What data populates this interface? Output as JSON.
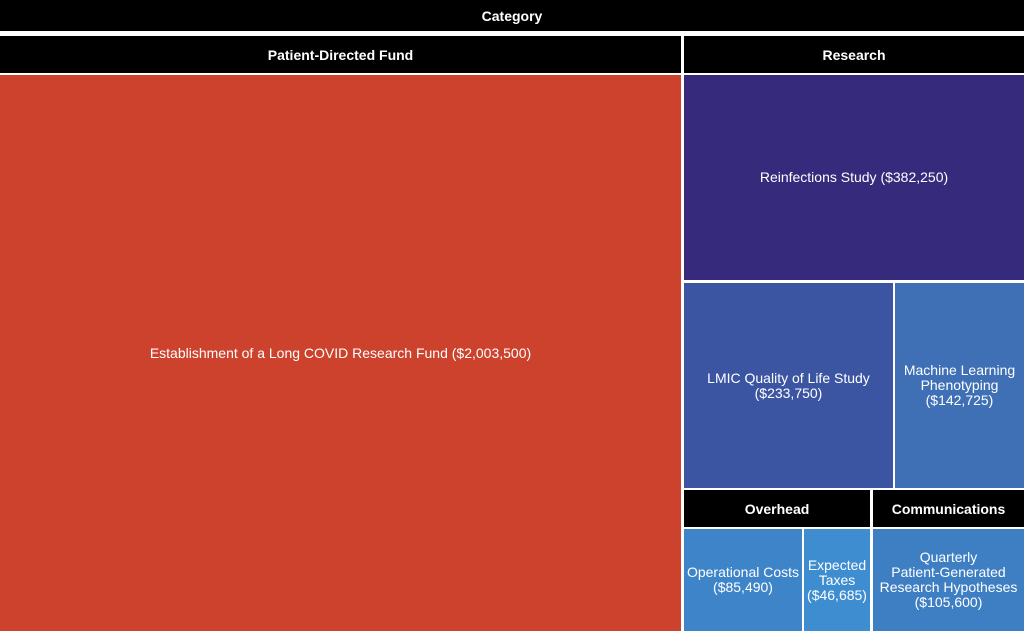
{
  "chart_data": {
    "type": "treemap",
    "root_label": "Category",
    "categories": [
      {
        "name": "Patient-Directed Fund",
        "items": [
          {
            "name": "Establishment of a Long COVID Research Fund",
            "value": 2003500,
            "label": "Establishment of a Long COVID Research Fund ($2,003,500)",
            "color": "#cc422c"
          }
        ]
      },
      {
        "name": "Research",
        "items": [
          {
            "name": "Reinfections Study",
            "value": 382250,
            "label": "Reinfections Study ($382,250)",
            "color": "#352a7c"
          },
          {
            "name": "LMIC Quality of Life Study",
            "value": 233750,
            "label": "LMIC Quality of Life Study\n($233,750)",
            "color": "#3c55a2"
          },
          {
            "name": "Machine Learning Phenotyping",
            "value": 142725,
            "label": "Machine Learning\nPhenotyping\n($142,725)",
            "color": "#3f70b5"
          }
        ]
      },
      {
        "name": "Overhead",
        "items": [
          {
            "name": "Operational Costs",
            "value": 85490,
            "label": "Operational Costs\n($85,490)",
            "color": "#3e84c8"
          },
          {
            "name": "Expected Taxes",
            "value": 46685,
            "label": "Expected\nTaxes\n($46,685)",
            "color": "#3e8dd0"
          }
        ]
      },
      {
        "name": "Communications",
        "items": [
          {
            "name": "Quarterly Patient-Generated Research Hypotheses",
            "value": 105600,
            "label": "Quarterly\nPatient-Generated\nResearch Hypotheses\n($105,600)",
            "color": "#3e7fc3"
          }
        ]
      }
    ]
  }
}
